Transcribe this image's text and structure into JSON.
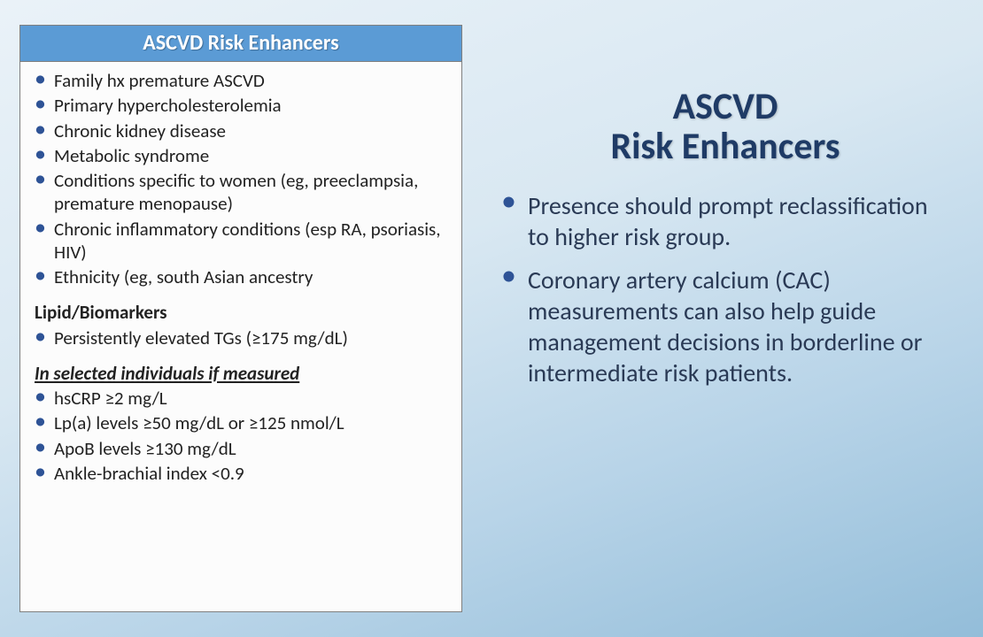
{
  "colors": {
    "header_bg": "#5b9bd5",
    "header_text": "#ffffff",
    "bullet": "#2e5396",
    "title_text": "#1f3b66",
    "body_text": "#2a3a55",
    "table_border": "#7f7f7f",
    "table_body_bg": "#fcfcfc",
    "slide_bg_top": "#eaf2f8",
    "slide_bg_bottom": "#93bdd9"
  },
  "typography": {
    "font_family": "Calibri",
    "table_header_pt": 18,
    "table_body_pt": 16,
    "title_pt": 32,
    "right_body_pt": 21
  },
  "table": {
    "header": "ASCVD Risk Enhancers",
    "clinical": [
      "Family hx premature ASCVD",
      "Primary hypercholesterolemia",
      "Chronic kidney disease",
      "Metabolic syndrome",
      "Conditions specific to women (eg, preeclampsia, premature menopause)",
      "Chronic inflammatory conditions (esp RA, psoriasis, HIV)",
      "Ethnicity (eg, south Asian ancestry"
    ],
    "section_lipid_label": "Lipid/Biomarkers",
    "lipid": [
      "Persistently elevated TGs (≥175 mg/dL)"
    ],
    "section_selected_label": "In selected individuals if measured",
    "selected": [
      "hsCRP  ≥2 mg/L",
      "Lp(a) levels ≥50 mg/dL or ≥125 nmol/L",
      "ApoB levels ≥130 mg/dL",
      "Ankle-brachial index <0.9"
    ]
  },
  "right": {
    "title_line1": "ASCVD",
    "title_line2": "Risk Enhancers",
    "points": [
      "Presence should  prompt reclassification to higher risk group.",
      "Coronary artery calcium (CAC) measurements can also help guide management decisions in borderline or intermediate risk patients."
    ]
  }
}
